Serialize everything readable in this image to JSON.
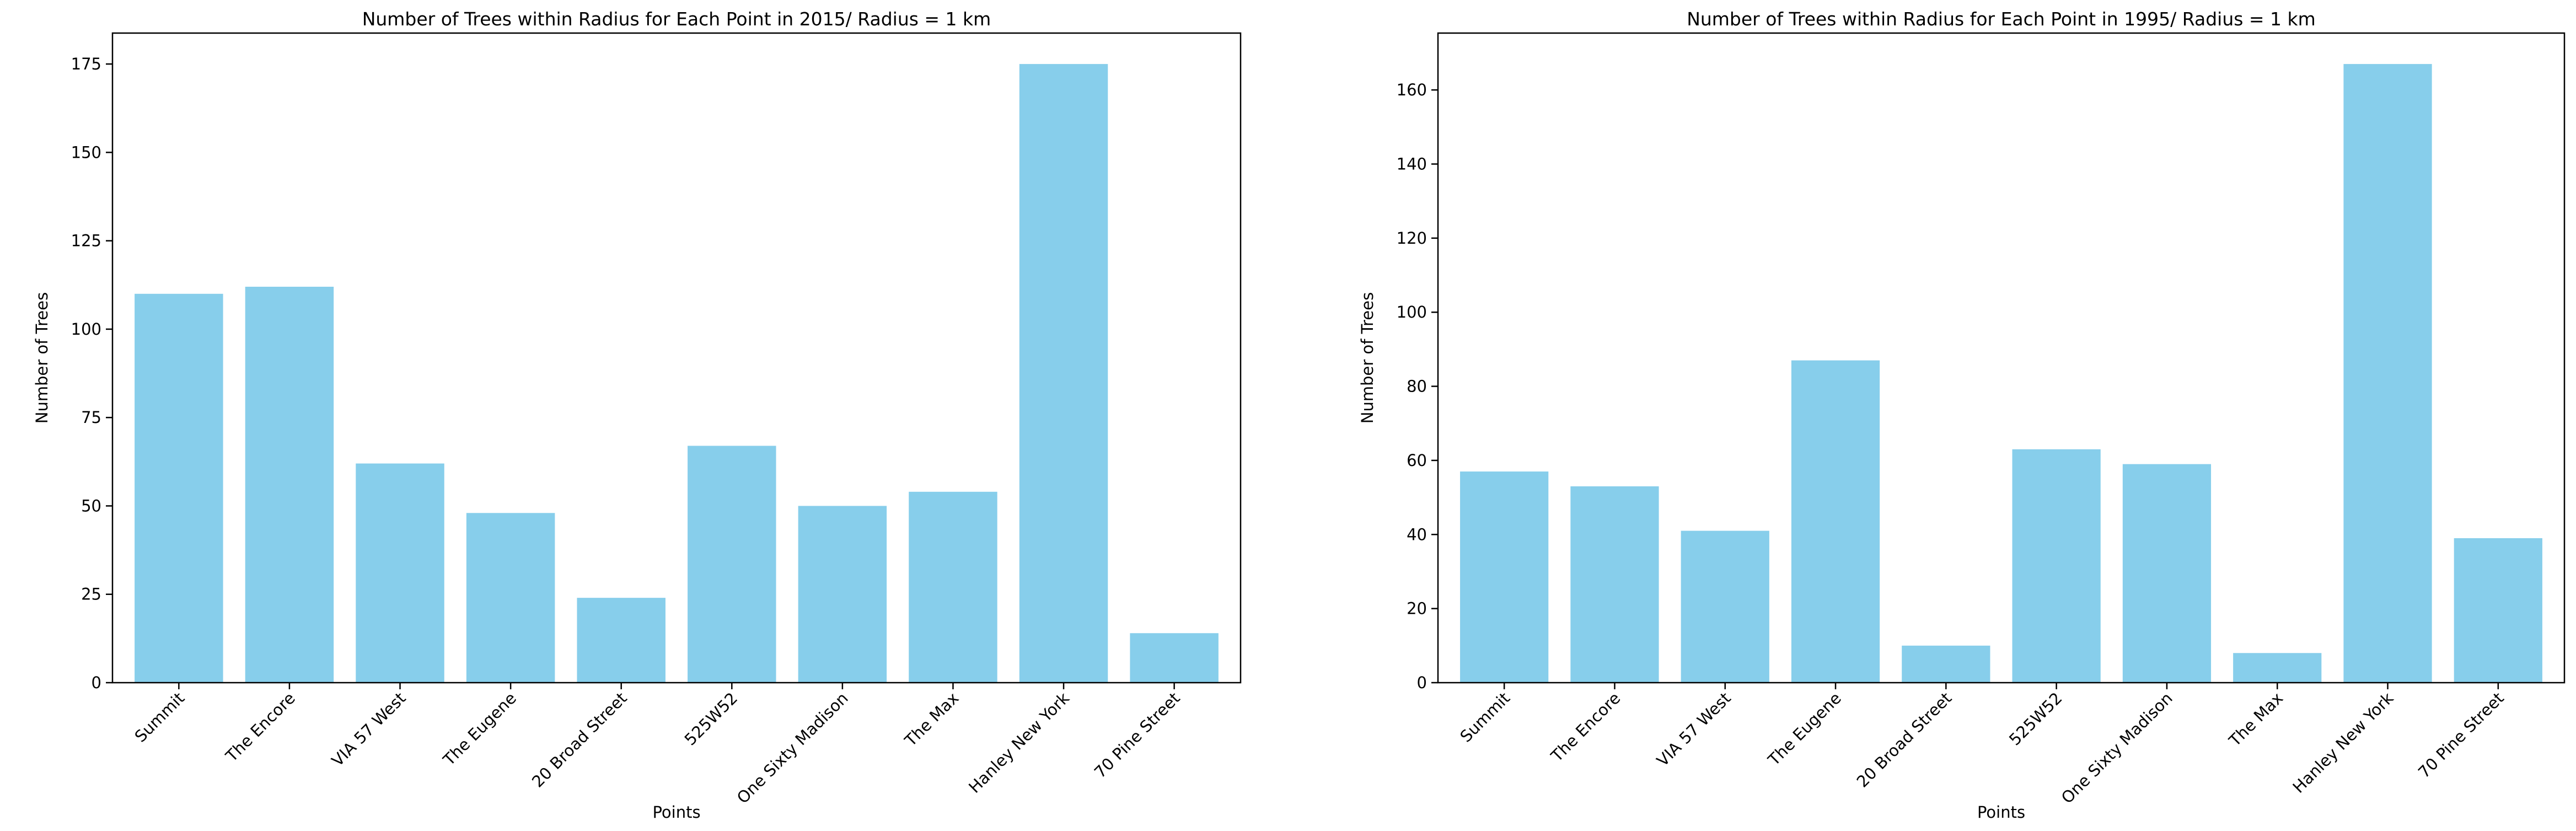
{
  "chart_data": [
    {
      "type": "bar",
      "title": "Number of Trees within Radius for Each Point in 2015/ Radius = 1 km",
      "xlabel": "Points",
      "ylabel": "Number of Trees",
      "categories": [
        "Summit",
        "The Encore",
        "VIA 57 West",
        "The Eugene",
        "20 Broad Street",
        "525W52",
        "One Sixty Madison",
        "The Max",
        "Hanley New York",
        "70 Pine Street"
      ],
      "values": [
        110,
        112,
        62,
        48,
        24,
        67,
        50,
        54,
        175,
        14
      ],
      "ylim": [
        0,
        183.75
      ],
      "yticks": [
        0,
        25,
        50,
        75,
        100,
        125,
        150,
        175
      ],
      "bar_color": "#87CEEB",
      "grid": false,
      "legend": "none"
    },
    {
      "type": "bar",
      "title": "Number of Trees within Radius for Each Point in 1995/ Radius = 1 km",
      "xlabel": "Points",
      "ylabel": "Number of Trees",
      "categories": [
        "Summit",
        "The Encore",
        "VIA 57 West",
        "The Eugene",
        "20 Broad Street",
        "525W52",
        "One Sixty Madison",
        "The Max",
        "Hanley New York",
        "70 Pine Street"
      ],
      "values": [
        57,
        53,
        41,
        87,
        10,
        63,
        59,
        8,
        167,
        39
      ],
      "ylim": [
        0,
        175.35
      ],
      "yticks": [
        0,
        20,
        40,
        60,
        80,
        100,
        120,
        140,
        160
      ],
      "bar_color": "#87CEEB",
      "grid": false,
      "legend": "none"
    }
  ]
}
